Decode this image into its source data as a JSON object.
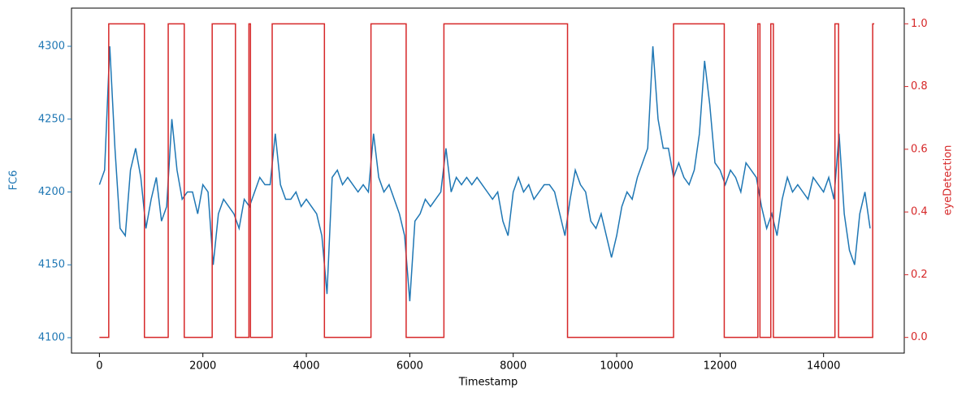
{
  "chart_data": {
    "type": "line",
    "x_label": "Timestamp",
    "y_label": "FC6",
    "y2_label": "eyeDetection",
    "xlim": [
      -540,
      15560
    ],
    "ylim": [
      4089.4,
      4326.2
    ],
    "y2lim": [
      -0.05,
      1.05
    ],
    "xticks": [
      0,
      2000,
      4000,
      6000,
      8000,
      10000,
      12000,
      14000
    ],
    "yticks": [
      4100,
      4150,
      4200,
      4250,
      4300
    ],
    "y2ticks": [
      {
        "value": 0,
        "label": "0.0"
      },
      0.2,
      0.4,
      0.6,
      0.8,
      {
        "value": 1,
        "label": "1.0"
      }
    ],
    "y_color": "#1f77b4",
    "y2_color": "#d62728",
    "series": [
      {
        "name": "FC6",
        "color": "#1f77b4",
        "x": [
          0,
          100,
          200,
          300,
          400,
          500,
          600,
          700,
          800,
          900,
          1000,
          1100,
          1200,
          1300,
          1400,
          1500,
          1600,
          1700,
          1800,
          1900,
          2000,
          2100,
          2200,
          2300,
          2400,
          2500,
          2600,
          2700,
          2800,
          2900,
          3000,
          3100,
          3200,
          3300,
          3400,
          3500,
          3600,
          3700,
          3800,
          3900,
          4000,
          4100,
          4200,
          4300,
          4400,
          4500,
          4600,
          4700,
          4800,
          4900,
          5000,
          5100,
          5200,
          5300,
          5400,
          5500,
          5600,
          5700,
          5800,
          5900,
          6000,
          6100,
          6200,
          6300,
          6400,
          6500,
          6600,
          6700,
          6800,
          6900,
          7000,
          7100,
          7200,
          7300,
          7400,
          7500,
          7600,
          7700,
          7800,
          7900,
          8000,
          8100,
          8200,
          8300,
          8400,
          8500,
          8600,
          8700,
          8800,
          8900,
          9000,
          9100,
          9200,
          9300,
          9400,
          9500,
          9600,
          9700,
          9800,
          9900,
          10000,
          10100,
          10200,
          10300,
          10400,
          10500,
          10600,
          10700,
          10800,
          10900,
          11000,
          11100,
          11200,
          11300,
          11400,
          11500,
          11600,
          11700,
          11800,
          11900,
          12000,
          12100,
          12200,
          12300,
          12400,
          12500,
          12600,
          12700,
          12800,
          12900,
          13000,
          13100,
          13200,
          13300,
          13400,
          13500,
          13600,
          13700,
          13800,
          13900,
          14000,
          14100,
          14200,
          14300,
          14400,
          14500,
          14600,
          14700,
          14800,
          14900
        ],
        "values": [
          4205,
          4215,
          4300,
          4230,
          4175,
          4170,
          4215,
          4230,
          4210,
          4175,
          4195,
          4210,
          4180,
          4190,
          4250,
          4215,
          4195,
          4200,
          4200,
          4185,
          4205,
          4200,
          4150,
          4185,
          4195,
          4190,
          4185,
          4175,
          4195,
          4190,
          4200,
          4210,
          4205,
          4205,
          4240,
          4205,
          4195,
          4195,
          4200,
          4190,
          4195,
          4190,
          4185,
          4170,
          4130,
          4210,
          4215,
          4205,
          4210,
          4205,
          4200,
          4205,
          4200,
          4240,
          4210,
          4200,
          4205,
          4195,
          4185,
          4170,
          4125,
          4180,
          4185,
          4195,
          4190,
          4195,
          4200,
          4230,
          4200,
          4210,
          4205,
          4210,
          4205,
          4210,
          4205,
          4200,
          4195,
          4200,
          4180,
          4170,
          4200,
          4210,
          4200,
          4205,
          4195,
          4200,
          4205,
          4205,
          4200,
          4185,
          4170,
          4195,
          4215,
          4205,
          4200,
          4180,
          4175,
          4185,
          4170,
          4155,
          4170,
          4190,
          4200,
          4195,
          4210,
          4220,
          4230,
          4300,
          4250,
          4230,
          4230,
          4210,
          4220,
          4210,
          4205,
          4215,
          4240,
          4290,
          4260,
          4220,
          4215,
          4205,
          4215,
          4210,
          4200,
          4220,
          4215,
          4210,
          4190,
          4175,
          4185,
          4170,
          4195,
          4210,
          4200,
          4205,
          4200,
          4195,
          4210,
          4205,
          4200,
          4210,
          4195,
          4240,
          4185,
          4160,
          4150,
          4185,
          4200,
          4175
        ]
      },
      {
        "name": "eyeDetection",
        "color": "#d62728",
        "axis": "y2",
        "x": [
          0,
          180,
          180,
          870,
          870,
          1330,
          1330,
          1640,
          1640,
          2180,
          2180,
          2630,
          2630,
          2890,
          2890,
          2920,
          2920,
          3340,
          3340,
          4350,
          4350,
          5250,
          5250,
          5930,
          5930,
          6660,
          6660,
          9050,
          9050,
          11100,
          11100,
          12080,
          12080,
          12730,
          12730,
          12770,
          12770,
          12980,
          12980,
          13030,
          13030,
          14220,
          14220,
          14290,
          14290,
          14950,
          14950,
          14980
        ],
        "values": [
          0,
          0,
          1,
          1,
          0,
          0,
          1,
          1,
          0,
          0,
          1,
          1,
          0,
          0,
          1,
          1,
          0,
          0,
          1,
          1,
          0,
          0,
          1,
          1,
          0,
          0,
          1,
          1,
          0,
          0,
          1,
          1,
          0,
          0,
          1,
          1,
          0,
          0,
          1,
          1,
          0,
          0,
          1,
          1,
          0,
          0,
          1,
          1
        ]
      }
    ]
  }
}
